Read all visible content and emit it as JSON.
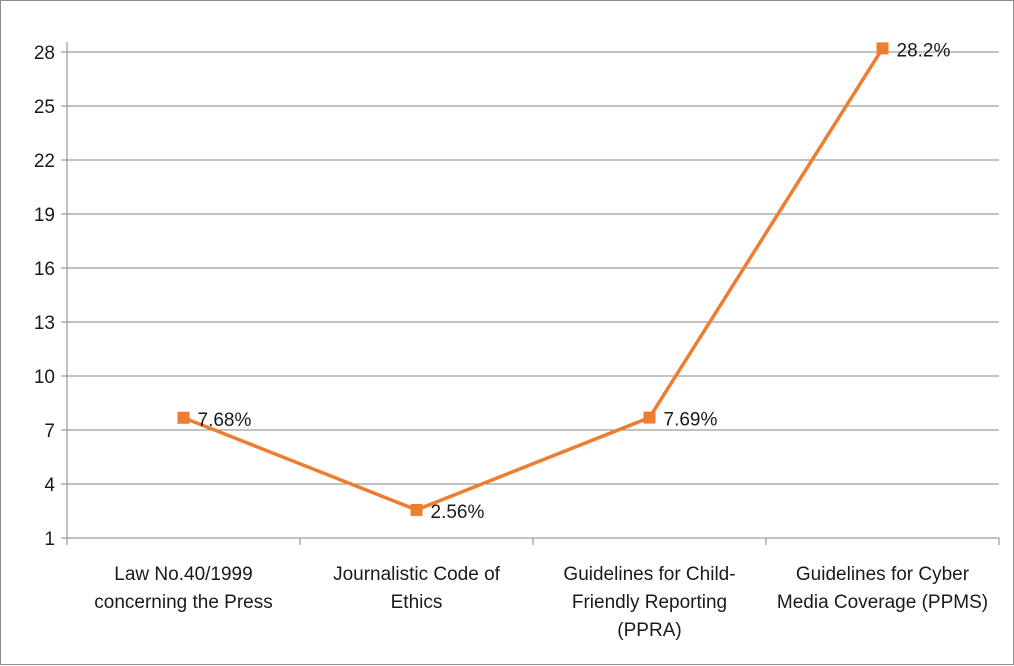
{
  "chart_data": {
    "type": "line",
    "title": "",
    "xlabel": "",
    "ylabel": "",
    "categories": [
      [
        "Law No.40/1999",
        "concerning the Press"
      ],
      [
        "Journalistic Code of",
        "Ethics"
      ],
      [
        "Guidelines for Child-",
        "Friendly Reporting",
        "(PPRA)"
      ],
      [
        "Guidelines for Cyber",
        "Media Coverage (PPMS)"
      ]
    ],
    "series": [
      {
        "values": [
          7.68,
          2.56,
          7.69,
          28.2
        ],
        "data_labels": [
          "7.68%",
          "2.56%",
          "7.69%",
          "28.2%"
        ],
        "color": "#ed7d31",
        "marker": "square"
      }
    ],
    "ylim": [
      1,
      28
    ],
    "yticks": [
      1,
      4,
      7,
      10,
      13,
      16,
      19,
      22,
      25,
      28
    ],
    "grid": true,
    "legend": "none",
    "gridline_color": "#868686",
    "axis_color": "#868686"
  }
}
